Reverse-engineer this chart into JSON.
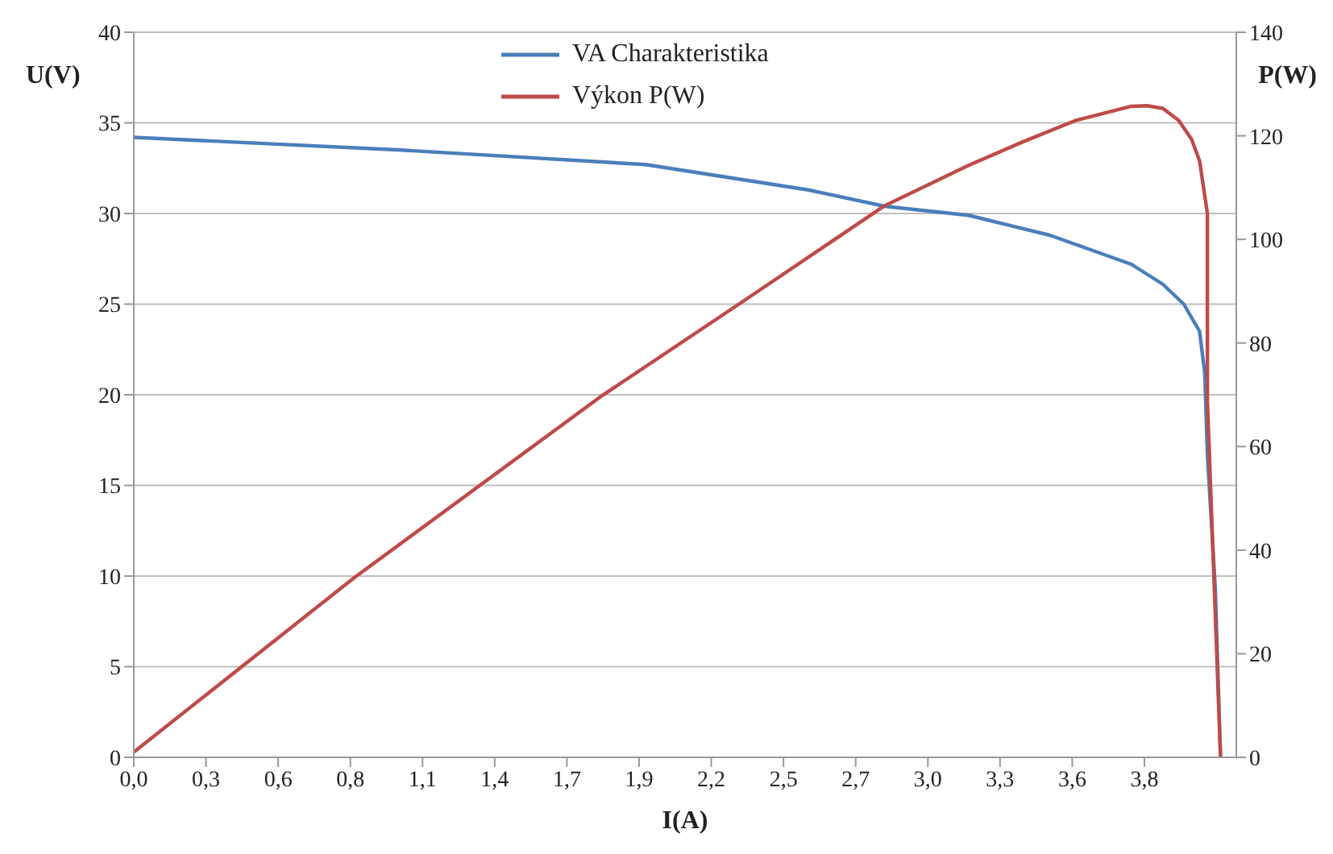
{
  "chart_data": {
    "type": "line",
    "xlabel": "I(A)",
    "ylabel": "U(V)",
    "y2label": "P(W)",
    "xlim": [
      0,
      4.2
    ],
    "xticks": [
      {
        "value": 0,
        "label": "0,0"
      },
      {
        "value": 0.275,
        "label": "0,3"
      },
      {
        "value": 0.55,
        "label": "0,6"
      },
      {
        "value": 0.825,
        "label": "0,8"
      },
      {
        "value": 1.1,
        "label": "1,1"
      },
      {
        "value": 1.375,
        "label": "1,4"
      },
      {
        "value": 1.65,
        "label": "1,7"
      },
      {
        "value": 1.925,
        "label": "1,9"
      },
      {
        "value": 2.2,
        "label": "2,2"
      },
      {
        "value": 2.475,
        "label": "2,5"
      },
      {
        "value": 2.75,
        "label": "2,7"
      },
      {
        "value": 3.025,
        "label": "3,0"
      },
      {
        "value": 3.3,
        "label": "3,3"
      },
      {
        "value": 3.575,
        "label": "3,6"
      },
      {
        "value": 3.85,
        "label": "3,8"
      }
    ],
    "ylim": [
      0,
      40
    ],
    "yticks": [
      0,
      5,
      10,
      15,
      20,
      25,
      30,
      35,
      40
    ],
    "y2lim": [
      0,
      140
    ],
    "y2ticks": [
      0,
      20,
      40,
      60,
      80,
      100,
      120,
      140
    ],
    "grid": "y",
    "legend": "top",
    "marker": "none",
    "line_style": "solid",
    "series": [
      {
        "name": "VA Charakteristika",
        "color": "#4a7ebb",
        "x": [
          0,
          1.02,
          1.95,
          2.57,
          2.86,
          3.18,
          3.49,
          3.8,
          3.92,
          4.0,
          4.06,
          4.08,
          4.09,
          4.12,
          4.14
        ],
        "values": [
          34.2,
          33.5,
          32.7,
          31.3,
          30.4,
          29.9,
          28.8,
          27.2,
          26.1,
          25.0,
          23.5,
          21.2,
          16.7,
          9.3,
          0
        ]
      },
      {
        "name": "Výkon P(W)",
        "color": "#be4b48",
        "axis": "y2",
        "x": [
          0,
          0.84,
          1.78,
          2.32,
          2.86,
          3.18,
          3.39,
          3.59,
          3.8,
          3.86,
          3.92,
          3.98,
          4.03,
          4.06,
          4.09,
          4.09,
          4.12,
          4.14
        ],
        "values": [
          1,
          34.7,
          69.7,
          88,
          106.5,
          114.3,
          118.9,
          123,
          125.7,
          125.8,
          125.3,
          123,
          119.3,
          115.2,
          105,
          68.8,
          27.6,
          0
        ]
      }
    ]
  }
}
